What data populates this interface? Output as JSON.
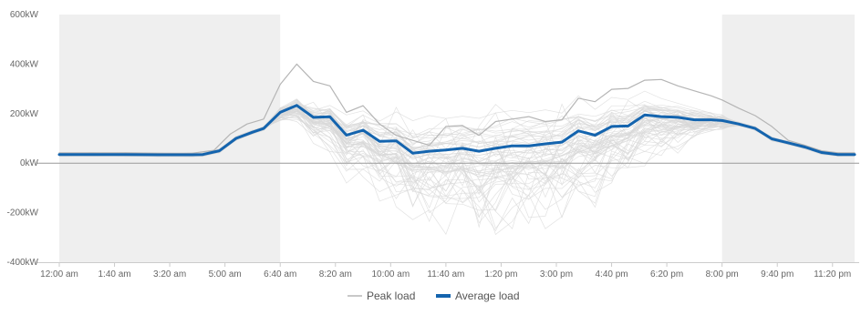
{
  "chart_data": {
    "type": "line",
    "title": "",
    "xlabel": "",
    "ylabel": "",
    "x_ticks": [
      "12:00 am",
      "1:40 am",
      "3:20 am",
      "5:00 am",
      "6:40 am",
      "8:20 am",
      "10:00 am",
      "11:40 am",
      "1:20 pm",
      "3:00 pm",
      "4:40 pm",
      "6:20 pm",
      "8:00 pm",
      "9:40 pm",
      "11:20 pm"
    ],
    "y_ticks": [
      "600kW",
      "400kW",
      "200kW",
      "0kW",
      "-200kW",
      "-400kW"
    ],
    "ylim": [
      -400,
      600
    ],
    "x_range_minutes": [
      0,
      1440
    ],
    "grid": false,
    "legend_position": "bottom-center",
    "shaded_periods_minutes": [
      [
        0,
        400
      ],
      [
        1200,
        1440
      ]
    ],
    "colors": {
      "peak": "#b5b5b5",
      "average": "#1464ae",
      "background_lines": "#d8d8d8",
      "shade": "#efefef",
      "axis": "#999999"
    },
    "series": [
      {
        "name": "Peak load",
        "x_minutes": [
          0,
          60,
          120,
          180,
          240,
          280,
          310,
          340,
          370,
          385,
          400,
          430,
          460,
          490,
          520,
          550,
          580,
          610,
          640,
          670,
          700,
          730,
          760,
          790,
          820,
          850,
          880,
          910,
          940,
          970,
          1000,
          1030,
          1060,
          1090,
          1120,
          1150,
          1180,
          1200,
          1230,
          1260,
          1290,
          1320,
          1350,
          1380,
          1410,
          1440
        ],
        "values": [
          42,
          42,
          42,
          40,
          40,
          52,
          118,
          158,
          178,
          248,
          318,
          400,
          330,
          312,
          205,
          232,
          158,
          112,
          92,
          72,
          148,
          152,
          112,
          168,
          178,
          188,
          168,
          175,
          262,
          248,
          298,
          302,
          335,
          338,
          312,
          292,
          272,
          255,
          222,
          192,
          148,
          92,
          72,
          50,
          42,
          42
        ]
      },
      {
        "name": "Average load",
        "x_minutes": [
          0,
          60,
          120,
          180,
          240,
          260,
          290,
          320,
          350,
          370,
          400,
          430,
          460,
          490,
          520,
          550,
          580,
          610,
          640,
          670,
          700,
          730,
          760,
          790,
          820,
          850,
          880,
          910,
          940,
          970,
          1000,
          1030,
          1060,
          1090,
          1120,
          1150,
          1180,
          1200,
          1230,
          1260,
          1290,
          1320,
          1350,
          1380,
          1410,
          1440
        ],
        "values": [
          35,
          35,
          35,
          34,
          34,
          35,
          50,
          100,
          125,
          140,
          205,
          233,
          185,
          187,
          113,
          133,
          88,
          90,
          40,
          48,
          53,
          60,
          48,
          60,
          70,
          70,
          78,
          85,
          130,
          113,
          148,
          150,
          195,
          188,
          185,
          175,
          175,
          172,
          158,
          140,
          98,
          82,
          65,
          43,
          35,
          35
        ]
      }
    ]
  }
}
